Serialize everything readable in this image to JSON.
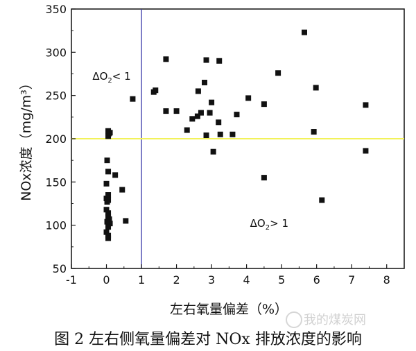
{
  "chart_data": {
    "type": "scatter",
    "title": "",
    "xlabel": "左右氧量偏差（%）",
    "ylabel": "NOx浓度（mg/m³）",
    "xlim": [
      -1,
      8.5
    ],
    "ylim": [
      50,
      350
    ],
    "xticks": [
      -1,
      0,
      1,
      2,
      3,
      4,
      5,
      6,
      7,
      8
    ],
    "yticks": [
      50,
      100,
      150,
      200,
      250,
      300,
      350
    ],
    "grid": false,
    "legend": "none",
    "reference_lines": [
      {
        "orientation": "vertical",
        "x": 1,
        "color": "#3a3aa8"
      },
      {
        "orientation": "horizontal",
        "y": 200,
        "color": "#f2f25a"
      }
    ],
    "annotations": [
      {
        "id": "lt",
        "text": "ΔO2< 1",
        "x": -0.4,
        "y": 268
      },
      {
        "id": "gt",
        "text": "ΔO2> 1",
        "x": 4.1,
        "y": 98
      }
    ],
    "series": [
      {
        "marker": "square",
        "color": "#111111",
        "points": [
          [
            0.05,
            209
          ],
          [
            0.07,
            206
          ],
          [
            0.05,
            203
          ],
          [
            0.1,
            207
          ],
          [
            0.02,
            175
          ],
          [
            0.05,
            162
          ],
          [
            0.25,
            158
          ],
          [
            0.0,
            148
          ],
          [
            0.45,
            141
          ],
          [
            0.05,
            135
          ],
          [
            0.0,
            131
          ],
          [
            0.05,
            129
          ],
          [
            0.02,
            127
          ],
          [
            0.0,
            118
          ],
          [
            0.05,
            114
          ],
          [
            0.05,
            110
          ],
          [
            0.08,
            107
          ],
          [
            0.02,
            104
          ],
          [
            0.1,
            102
          ],
          [
            0.05,
            98
          ],
          [
            0.0,
            92
          ],
          [
            0.05,
            88
          ],
          [
            0.05,
            85
          ],
          [
            0.55,
            105
          ],
          [
            0.75,
            246
          ],
          [
            1.35,
            254
          ],
          [
            1.4,
            256
          ],
          [
            1.7,
            292
          ],
          [
            1.7,
            232
          ],
          [
            2.0,
            232
          ],
          [
            2.3,
            210
          ],
          [
            2.45,
            223
          ],
          [
            2.6,
            226
          ],
          [
            2.62,
            255
          ],
          [
            2.7,
            230
          ],
          [
            2.8,
            265
          ],
          [
            2.85,
            291
          ],
          [
            2.85,
            204
          ],
          [
            2.95,
            230
          ],
          [
            3.0,
            242
          ],
          [
            3.05,
            185
          ],
          [
            3.2,
            219
          ],
          [
            3.22,
            290
          ],
          [
            3.25,
            205
          ],
          [
            3.6,
            205
          ],
          [
            3.72,
            228
          ],
          [
            4.05,
            247
          ],
          [
            4.5,
            240
          ],
          [
            4.5,
            155
          ],
          [
            4.9,
            276
          ],
          [
            5.65,
            323
          ],
          [
            5.92,
            208
          ],
          [
            5.98,
            259
          ],
          [
            6.15,
            129
          ],
          [
            7.4,
            239
          ],
          [
            7.4,
            186
          ]
        ]
      }
    ]
  },
  "caption": "图 2  左右侧氧量偏差对 NOx 排放浓度的影响",
  "watermark": "我的煤炭网"
}
